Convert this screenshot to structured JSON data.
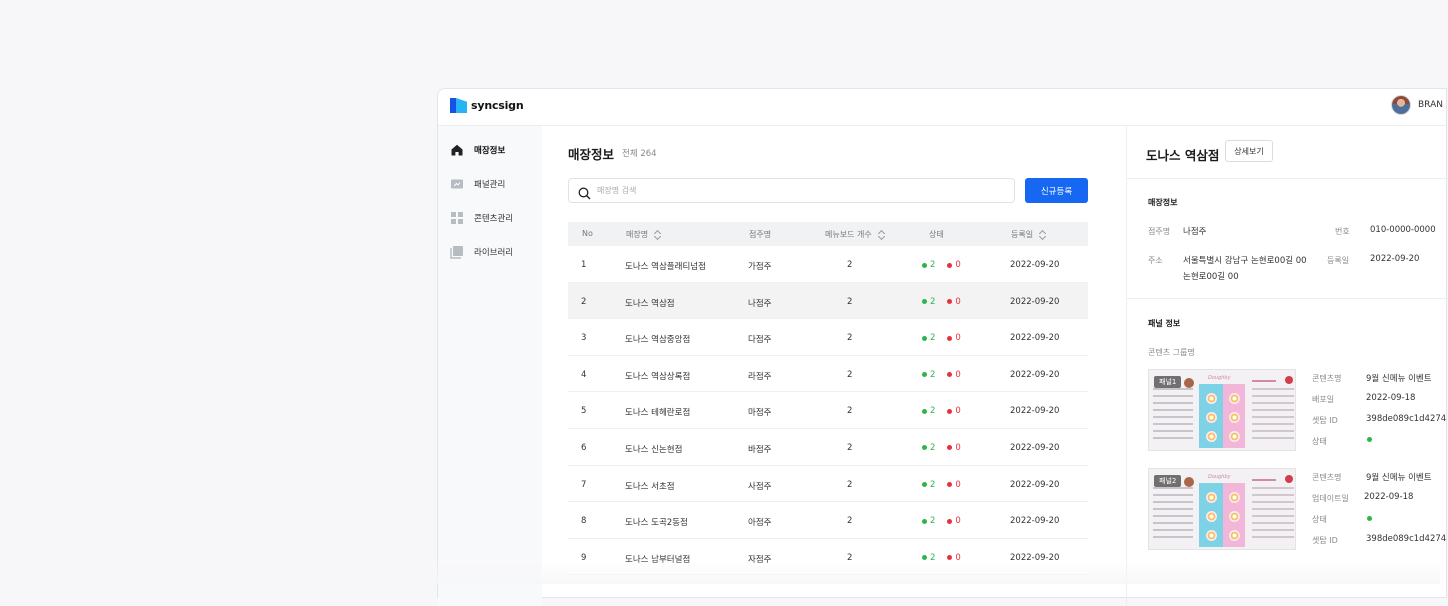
{
  "app": {
    "logo_text": "syncsign",
    "user_name": "BRAN"
  },
  "sidebar": {
    "items": [
      {
        "label": "매장정보",
        "icon": "home-icon",
        "active": true
      },
      {
        "label": "패널관리",
        "icon": "panel-icon",
        "active": false
      },
      {
        "label": "콘텐츠관리",
        "icon": "grid-icon",
        "active": false
      },
      {
        "label": "라이브러리",
        "icon": "library-icon",
        "active": false
      }
    ]
  },
  "main": {
    "title": "매장정보",
    "count": "전체 264",
    "search_placeholder": "매장명 검색",
    "add_button": "신규등록",
    "columns": [
      "No",
      "매장명",
      "점주명",
      "메뉴보드 개수",
      "상태",
      "등록일"
    ],
    "rows": [
      {
        "no": "1",
        "name": "도나스 역삼플래티넘점",
        "owner": "가점주",
        "boards": "2",
        "on": "2",
        "off": "0",
        "date": "2022-09-20"
      },
      {
        "no": "2",
        "name": "도나스 역삼점",
        "owner": "나점주",
        "boards": "2",
        "on": "2",
        "off": "0",
        "date": "2022-09-20"
      },
      {
        "no": "3",
        "name": "도나스 역삼중앙점",
        "owner": "다점주",
        "boards": "2",
        "on": "2",
        "off": "0",
        "date": "2022-09-20"
      },
      {
        "no": "4",
        "name": "도나스 역삼상록점",
        "owner": "라점주",
        "boards": "2",
        "on": "2",
        "off": "0",
        "date": "2022-09-20"
      },
      {
        "no": "5",
        "name": "도나스 테헤란로점",
        "owner": "마점주",
        "boards": "2",
        "on": "2",
        "off": "0",
        "date": "2022-09-20"
      },
      {
        "no": "6",
        "name": "도나스 신논현점",
        "owner": "바점주",
        "boards": "2",
        "on": "2",
        "off": "0",
        "date": "2022-09-20"
      },
      {
        "no": "7",
        "name": "도나스 서초점",
        "owner": "사점주",
        "boards": "2",
        "on": "2",
        "off": "0",
        "date": "2022-09-20"
      },
      {
        "no": "8",
        "name": "도나스 도곡2동점",
        "owner": "아점주",
        "boards": "2",
        "on": "2",
        "off": "0",
        "date": "2022-09-20"
      },
      {
        "no": "9",
        "name": "도나스 남부터널점",
        "owner": "자점주",
        "boards": "2",
        "on": "2",
        "off": "0",
        "date": "2022-09-20"
      }
    ],
    "selected_row": 2
  },
  "detail": {
    "title": "도나스 역삼점",
    "detail_button": "상세보기",
    "store_section": "매장정보",
    "owner_label": "점주명",
    "owner_value": "나점주",
    "phone_label": "번호",
    "phone_value": "010-0000-0000",
    "address_label": "주소",
    "address_line1": "서울특별시 강남구 논현로00길 00",
    "address_line2": "논현로00길 00",
    "regdate_label": "등록일",
    "regdate_value": "2022-09-20",
    "panel_section": "패널 정보",
    "group_label": "콘텐츠 그룹명",
    "panels": [
      {
        "badge": "패널1",
        "thumb_brand": "Doughby",
        "f1_label": "콘텐츠명",
        "f1_value": "9월 신메뉴 이벤트",
        "f2_label": "배포일",
        "f2_value": "2022-09-18",
        "f3_label": "셋탑 ID",
        "f3_value": "398de089c1d4274",
        "f4_label": "상태"
      },
      {
        "badge": "패널2",
        "thumb_brand": "Doughby",
        "f1_label": "콘텐츠명",
        "f1_value": "9월 신메뉴 이벤트",
        "f2_label": "업데이트일",
        "f2_value": "2022-09-18",
        "f3_label": "상태",
        "f4_label": "셋탑 ID",
        "f4_value": "398de089c1d4274"
      }
    ]
  },
  "colors": {
    "primary": "#1668f3",
    "online": "#2db54b",
    "offline": "#e8313b"
  }
}
